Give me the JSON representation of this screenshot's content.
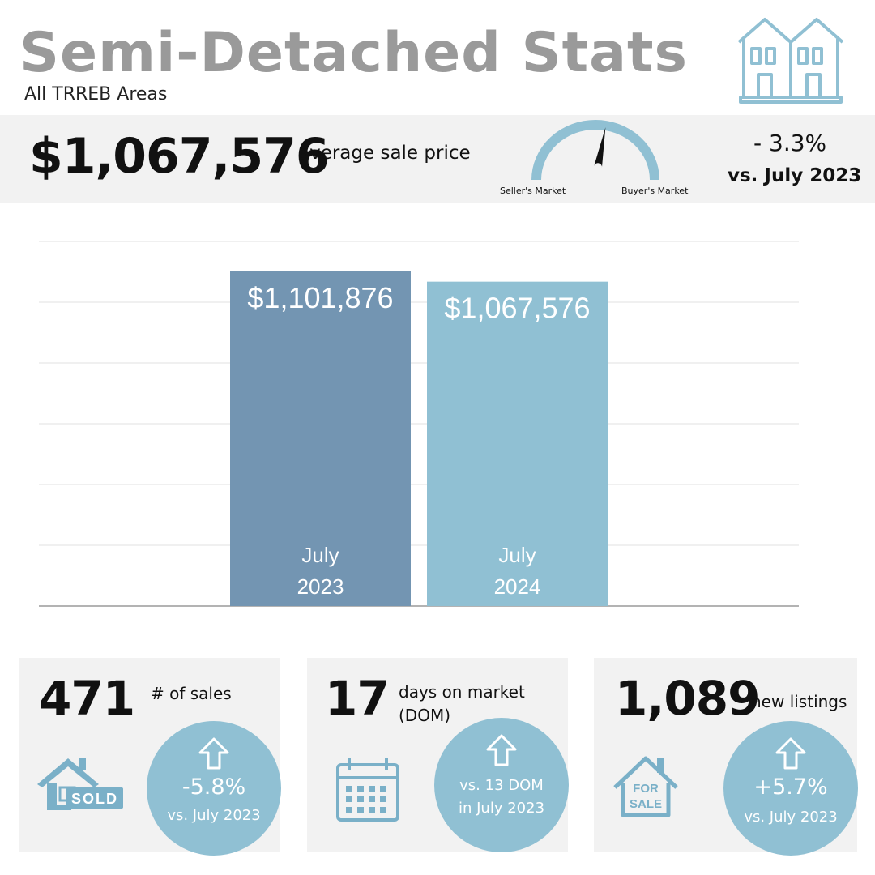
{
  "header": {
    "title": "Semi-Detached Stats",
    "subtitle": "All TRREB Areas",
    "icon": "semi-detached-house-icon"
  },
  "price": {
    "value": "$1,067,576",
    "label": "average sale price",
    "change": "- 3.3%",
    "comparison": "vs. July 2023"
  },
  "gauge": {
    "left_label": "Seller's Market",
    "right_label": "Buyer's Market",
    "needle_position": 0.56
  },
  "colors": {
    "title_gray": "#9a9a9a",
    "bar_2023": "#7395b2",
    "bar_2024": "#90c0d3",
    "accent": "#90c0d3",
    "card_bg": "#f2f2f2"
  },
  "chart_data": {
    "type": "bar",
    "categories": [
      [
        "July",
        "2023"
      ],
      [
        "July",
        "2024"
      ]
    ],
    "values": [
      1101876,
      1067576
    ],
    "value_labels": [
      "$1,101,876",
      "$1,067,576"
    ],
    "bar_colors": [
      "#7395b2",
      "#90c0d3"
    ],
    "ylim": [
      0,
      1200000
    ],
    "grid": true,
    "gridline_count": 6,
    "title": "",
    "xlabel": "",
    "ylabel": ""
  },
  "stats": {
    "sales": {
      "value": "471",
      "label": "# of sales",
      "icon": "sold-house-icon",
      "icon_text": "SOLD",
      "change": "-5.8%",
      "comparison": "vs. July 2023"
    },
    "dom": {
      "value": "17",
      "label_line1": "days on market",
      "label_line2": "(DOM)",
      "icon": "calendar-icon",
      "comparison_line1": "vs. 13 DOM",
      "comparison_line2": "in July 2023"
    },
    "listings": {
      "value": "1,089",
      "label": "new listings",
      "icon": "for-sale-house-icon",
      "icon_text_line1": "FOR",
      "icon_text_line2": "SALE",
      "change": "+5.7%",
      "comparison": "vs. July 2023"
    }
  }
}
